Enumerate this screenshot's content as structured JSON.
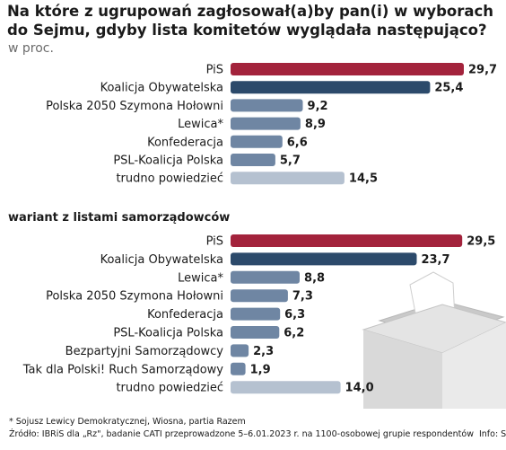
{
  "header": {
    "title_line1": "Na które z ugrupowań zagłosował(a)by pan(i) w wyborach",
    "title_line2": "do Sejmu, gdyby lista komitetów wyglądała następująco?",
    "unit": "w proc."
  },
  "section2_title": "wariant z listami samorządowców",
  "footnote": "* Sojusz Lewicy Demokratycznej, Wiosna, partia Razem",
  "source": "Źródło: IBRiS dla „Rz\", badanie CATI przeprowadzone 5–6.01.2023 r. na 1100-osobowej grupie respondentów",
  "credit": "Info: S",
  "colors": {
    "pis": "#a3233c",
    "ko": "#2c4a6b",
    "mid": "#6f86a3",
    "light": "#b5c1d0"
  },
  "chart_data": [
    {
      "type": "bar",
      "orientation": "horizontal",
      "categories": [
        "PiS",
        "Koalicja Obywatelska",
        "Polska 2050 Szymona Hołowni",
        "Lewica*",
        "Konfederacja",
        "PSL-Koalicja Polska",
        "trudno powiedzieć"
      ],
      "values": [
        29.7,
        25.4,
        9.2,
        8.9,
        6.6,
        5.7,
        14.5
      ],
      "value_labels": [
        "29,7",
        "25,4",
        "9,2",
        "8,9",
        "6,6",
        "5,7",
        "14,5"
      ],
      "bar_colors": [
        "pis",
        "ko",
        "mid",
        "mid",
        "mid",
        "mid",
        "light"
      ],
      "xlim": [
        0,
        29.7
      ]
    },
    {
      "type": "bar",
      "orientation": "horizontal",
      "title": "wariant z listami samorządowców",
      "categories": [
        "PiS",
        "Koalicja Obywatelska",
        "Lewica*",
        "Polska 2050 Szymona Hołowni",
        "Konfederacja",
        "PSL-Koalicja Polska",
        "Bezpartyjni Samorządowcy",
        "Tak dla Polski! Ruch Samorządowy",
        "trudno powiedzieć"
      ],
      "values": [
        29.5,
        23.7,
        8.8,
        7.3,
        6.3,
        6.2,
        2.3,
        1.9,
        14.0
      ],
      "value_labels": [
        "29,5",
        "23,7",
        "8,8",
        "7,3",
        "6,3",
        "6,2",
        "2,3",
        "1,9",
        "14,0"
      ],
      "bar_colors": [
        "pis",
        "ko",
        "mid",
        "mid",
        "mid",
        "mid",
        "mid",
        "mid",
        "light"
      ],
      "xlim": [
        0,
        29.7
      ]
    }
  ]
}
